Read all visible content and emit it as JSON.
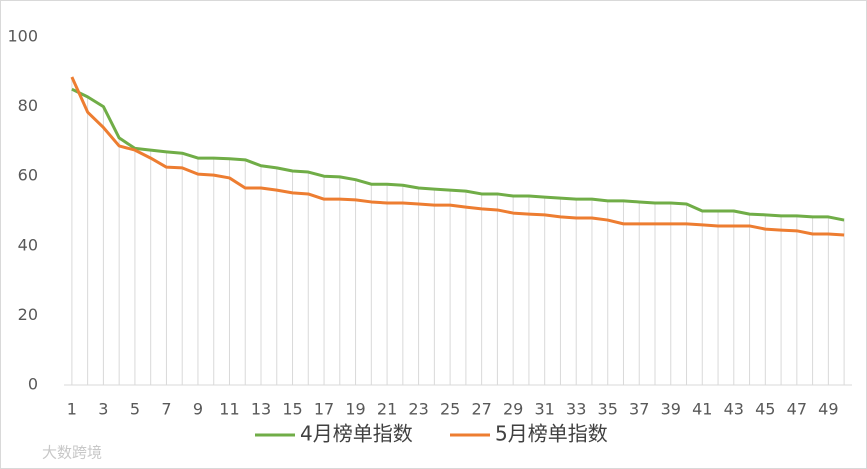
{
  "chart_data": {
    "type": "line",
    "categories": [
      1,
      null,
      3,
      null,
      5,
      null,
      7,
      null,
      9,
      null,
      11,
      null,
      13,
      null,
      15,
      null,
      17,
      null,
      19,
      null,
      21,
      null,
      23,
      null,
      25,
      null,
      27,
      null,
      29,
      null,
      31,
      null,
      33,
      null,
      35,
      null,
      37,
      null,
      39,
      null,
      41,
      null,
      43,
      null,
      45,
      null,
      47,
      null,
      49,
      null
    ],
    "series": [
      {
        "name": "4月榜单指数",
        "color": "#70ad47",
        "values": [
          85,
          82.8,
          80,
          71,
          68,
          67.5,
          67,
          66.6,
          65.2,
          65.2,
          65,
          64.7,
          63,
          62.4,
          61.5,
          61.2,
          60,
          59.8,
          59,
          57.7,
          57.7,
          57.4,
          56.6,
          56.3,
          56,
          55.7,
          54.9,
          54.9,
          54.3,
          54.3,
          54,
          53.7,
          53.4,
          53.4,
          52.9,
          52.9,
          52.6,
          52.3,
          52.3,
          52,
          50,
          50,
          50,
          49.1,
          48.9,
          48.6,
          48.6,
          48.3,
          48.3,
          47.4
        ]
      },
      {
        "name": "5月榜单指数",
        "color": "#ed7d31",
        "values": [
          88.5,
          78.4,
          74,
          68.7,
          67.5,
          65.2,
          62.6,
          62.4,
          60.6,
          60.3,
          59.5,
          56.6,
          56.6,
          56,
          55.2,
          54.9,
          53.4,
          53.4,
          53.2,
          52.6,
          52.3,
          52.3,
          52,
          51.7,
          51.7,
          51.1,
          50.6,
          50.3,
          49.4,
          49.1,
          48.9,
          48.3,
          48,
          48,
          47.4,
          46.3,
          46.3,
          46.3,
          46.3,
          46.3,
          46,
          45.7,
          45.7,
          45.7,
          44.8,
          44.5,
          44.3,
          43.4,
          43.4,
          43.1
        ]
      }
    ],
    "ylim": [
      0,
      100
    ],
    "yticks": [
      0,
      20,
      40,
      60,
      80,
      100
    ],
    "drop_lines": true,
    "legend": "bottom"
  },
  "watermark": "大数跨境"
}
